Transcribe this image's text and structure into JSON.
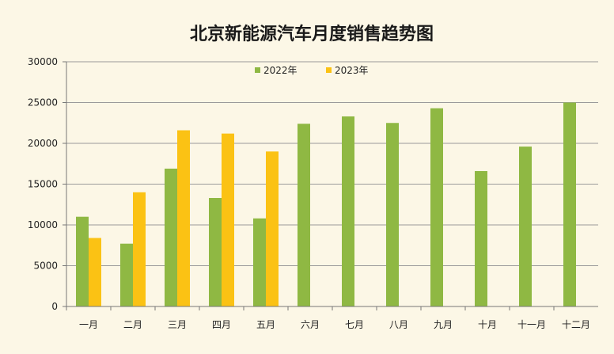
{
  "chart_data": {
    "type": "bar",
    "title": "北京新能源汽车月度销售趋势图",
    "categories": [
      "一月",
      "二月",
      "三月",
      "四月",
      "五月",
      "六月",
      "七月",
      "八月",
      "九月",
      "十月",
      "十一月",
      "十二月"
    ],
    "series": [
      {
        "name": "2022年",
        "color": "#8fb843",
        "values": [
          11000,
          7700,
          16900,
          13300,
          10800,
          22400,
          23300,
          22500,
          24300,
          16600,
          19600,
          25000
        ]
      },
      {
        "name": "2023年",
        "color": "#fbc214",
        "values": [
          8400,
          14000,
          21600,
          21200,
          19000,
          null,
          null,
          null,
          null,
          null,
          null,
          null
        ]
      }
    ],
    "ylim": [
      0,
      30000
    ],
    "yticks": [
      0,
      5000,
      10000,
      15000,
      20000,
      25000,
      30000
    ],
    "xlabel": "",
    "ylabel": "",
    "grid": true,
    "legend": "top-center"
  }
}
